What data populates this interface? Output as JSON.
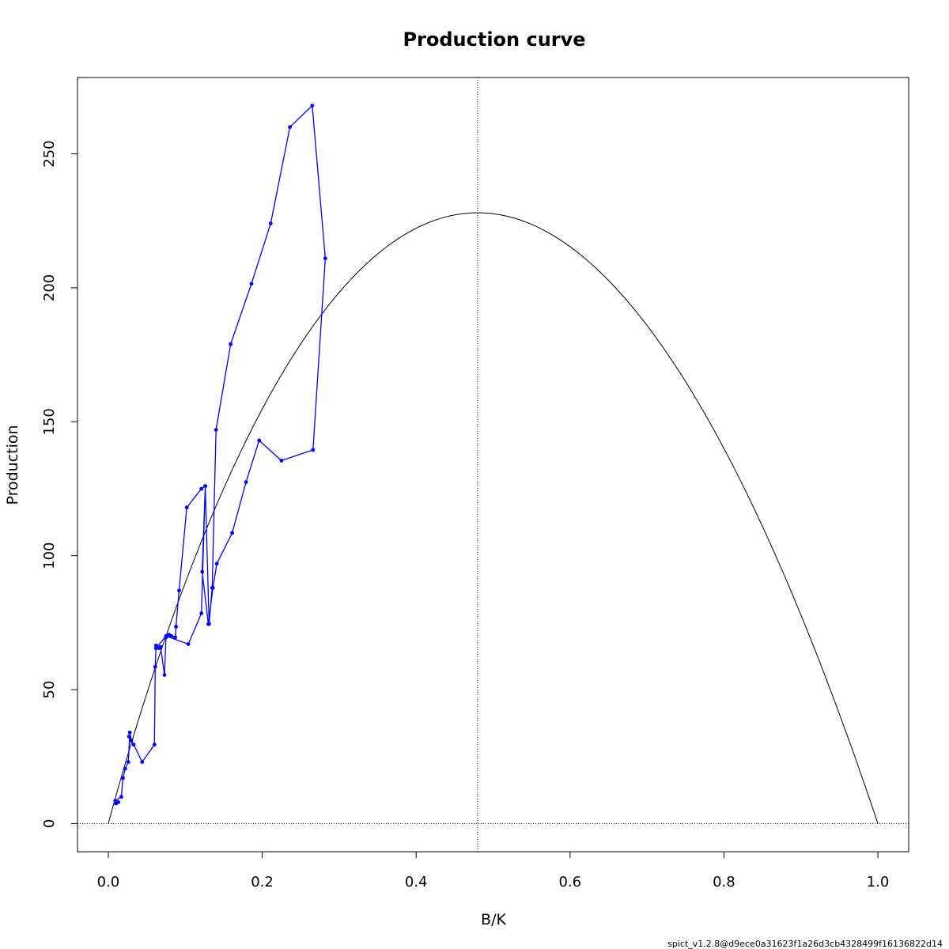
{
  "chart_data": {
    "type": "line",
    "title": "Production curve",
    "xlabel": "B/K",
    "ylabel": "Production",
    "xlim": [
      -0.04,
      1.04
    ],
    "ylim": [
      -10.5,
      278.5
    ],
    "x_ticks": [
      0.0,
      0.2,
      0.4,
      0.6,
      0.8,
      1.0
    ],
    "x_tick_labels": [
      "0.0",
      "0.2",
      "0.4",
      "0.6",
      "0.8",
      "1.0"
    ],
    "y_ticks": [
      0,
      50,
      100,
      150,
      200,
      250
    ],
    "y_tick_labels": [
      "0",
      "50",
      "100",
      "150",
      "200",
      "250"
    ],
    "grid": false,
    "footer_text": "spict_v1.2.8@d9ece0a31623f1a26d3cb4328499f16136822d14",
    "reference_lines": {
      "vertical_x": 0.48,
      "horizontal_y": 0
    },
    "curve": {
      "msy": 228,
      "bmsy_over_k": 0.48,
      "color": "#000000"
    },
    "series": [
      {
        "color": "#0000ff",
        "x": [
          0.01,
          0.013,
          0.009,
          0.017,
          0.019,
          0.022,
          0.026,
          0.028,
          0.03,
          0.027,
          0.033,
          0.044,
          0.06,
          0.061,
          0.062,
          0.066,
          0.068,
          0.073,
          0.075,
          0.079,
          0.082,
          0.087,
          0.088,
          0.092,
          0.102,
          0.121,
          0.126,
          0.131,
          0.135,
          0.14,
          0.159,
          0.186,
          0.211,
          0.236,
          0.265,
          0.282,
          0.266,
          0.225,
          0.196,
          0.179,
          0.161,
          0.141,
          0.136,
          0.13,
          0.122,
          0.126,
          0.121,
          0.104,
          0.075,
          0.062
        ],
        "y": [
          7.5,
          8.0,
          8.5,
          10,
          17,
          20.5,
          23,
          34,
          31,
          32.5,
          29.5,
          23,
          29.5,
          58.5,
          66.5,
          65.5,
          66,
          55.5,
          69.5,
          70.5,
          70,
          69.5,
          73.5,
          87,
          118,
          125,
          126,
          74.5,
          88,
          147,
          179,
          201.5,
          224,
          260,
          268,
          211,
          139.5,
          135.5,
          143,
          127.5,
          108.5,
          97,
          88,
          74.5,
          94,
          126,
          78.5,
          67,
          70,
          65.5
        ]
      }
    ]
  }
}
